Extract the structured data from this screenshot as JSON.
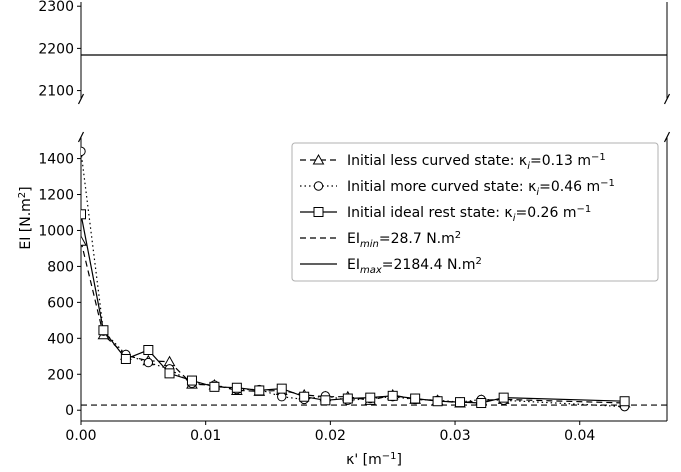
{
  "chart_data": {
    "type": "line",
    "xlabel_base": "κ' [m",
    "xlabel_sup": "−1",
    "xlabel_end": "]",
    "ylabel_base": "EI [N.m",
    "ylabel_sup": "2",
    "ylabel_end": "]",
    "xlim": [
      0,
      0.047
    ],
    "ylim_top": [
      2080,
      2310
    ],
    "ylim_bottom": [
      -60,
      1520
    ],
    "x_ticks": [
      0.0,
      0.01,
      0.02,
      0.03,
      0.04
    ],
    "x_tick_labels": [
      "0.00",
      "0.01",
      "0.02",
      "0.03",
      "0.04"
    ],
    "y_ticks_top": [
      2100,
      2200,
      2300
    ],
    "y_ticks_top_labels": [
      "2100",
      "2200",
      "2300"
    ],
    "y_ticks_bottom": [
      0,
      200,
      400,
      600,
      800,
      1000,
      1200,
      1400
    ],
    "y_ticks_bottom_labels": [
      "0",
      "200",
      "400",
      "600",
      "800",
      "1000",
      "1200",
      "1400"
    ],
    "legend_position": "upper-right",
    "series": [
      {
        "name": "less",
        "label_pre": "Initial less curved state: κ",
        "label_sub": "i",
        "label_mid": "=0.13 m",
        "label_sup": "−1",
        "marker": "triangle",
        "dash": "6,4",
        "x": [
          0.0,
          0.0018,
          0.0036,
          0.0054,
          0.0071,
          0.0089,
          0.0107,
          0.0125,
          0.0143,
          0.0161,
          0.0179,
          0.0196,
          0.0214,
          0.0232,
          0.025,
          0.0268,
          0.0286,
          0.0304,
          0.0321,
          0.0339,
          0.0436
        ],
        "y": [
          940,
          420,
          305,
          275,
          270,
          145,
          140,
          110,
          105,
          110,
          85,
          75,
          75,
          55,
          85,
          60,
          55,
          40,
          55,
          60,
          40
        ]
      },
      {
        "name": "more",
        "label_pre": "Initial more curved state: κ",
        "label_sub": "i",
        "label_mid": "=0.46 m",
        "label_sup": "−1",
        "marker": "circle",
        "dash": "1.5,3",
        "x": [
          0.0,
          0.0018,
          0.0036,
          0.0054,
          0.0071,
          0.0089,
          0.0107,
          0.0125,
          0.0143,
          0.0161,
          0.0179,
          0.0196,
          0.0214,
          0.0232,
          0.025,
          0.0268,
          0.0286,
          0.0304,
          0.0321,
          0.0339,
          0.0436
        ],
        "y": [
          1440,
          440,
          310,
          265,
          230,
          150,
          140,
          115,
          115,
          75,
          60,
          80,
          55,
          65,
          75,
          60,
          55,
          45,
          60,
          55,
          20
        ]
      },
      {
        "name": "ideal",
        "label_pre": "Initial ideal rest state: κ",
        "label_sub": "i",
        "label_mid": "=0.26 m",
        "label_sup": "−1",
        "marker": "square",
        "dash": "",
        "x": [
          0.0,
          0.0018,
          0.0036,
          0.0054,
          0.0071,
          0.0089,
          0.0107,
          0.0125,
          0.0143,
          0.0161,
          0.0179,
          0.0196,
          0.0214,
          0.0232,
          0.025,
          0.0268,
          0.0286,
          0.0304,
          0.0321,
          0.0339,
          0.0436
        ],
        "y": [
          1090,
          445,
          285,
          335,
          205,
          165,
          130,
          125,
          110,
          120,
          75,
          55,
          65,
          70,
          80,
          65,
          50,
          45,
          40,
          70,
          50
        ]
      }
    ],
    "reference_lines": [
      {
        "name": "min",
        "label_pre": "EI",
        "label_sub": "min",
        "label_mid": "=28.7 N.m",
        "label_sup": "2",
        "value": 28.7,
        "dash": "6,4"
      },
      {
        "name": "max",
        "label_pre": "EI",
        "label_sub": "max",
        "label_mid": "=2184.4 N.m",
        "label_sup": "2",
        "value": 2184.4,
        "dash": ""
      }
    ]
  }
}
